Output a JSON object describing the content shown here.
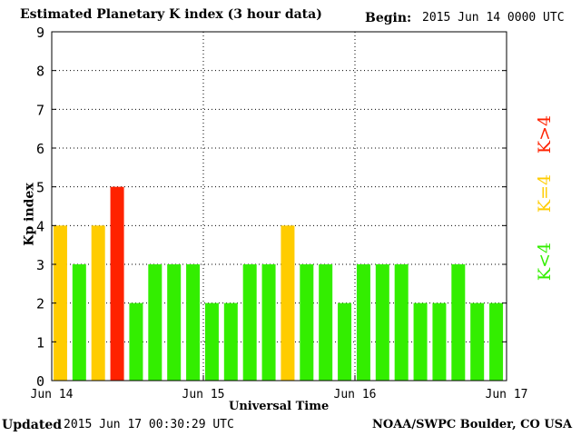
{
  "header": {
    "title": "Estimated Planetary K index (3 hour data)",
    "begin_label": "Begin:",
    "begin_value": "2015 Jun 14 0000 UTC"
  },
  "footer": {
    "updated_label": "Updated",
    "updated_value": "2015 Jun 17 00:30:29 UTC",
    "credit": "NOAA/SWPC Boulder, CO USA"
  },
  "legend": {
    "below": "K<4",
    "equal": "K=4",
    "above": "K>4"
  },
  "colors": {
    "below": "#33ee00",
    "equal": "#ffcc00",
    "above": "#ff2200"
  },
  "chart_data": {
    "type": "bar",
    "title": "Estimated Planetary K index (3 hour data)",
    "xlabel": "Universal Time",
    "ylabel": "Kp index",
    "ylim": [
      0,
      9
    ],
    "yticks": [
      "0",
      "1",
      "2",
      "3",
      "4",
      "5",
      "6",
      "7",
      "8",
      "9"
    ],
    "xticks": [
      "Jun 14",
      "Jun 15",
      "Jun 16",
      "Jun 17"
    ],
    "grid": true,
    "values": [
      4,
      3,
      4,
      5,
      2,
      3,
      3,
      3,
      2,
      2,
      3,
      3,
      4,
      3,
      3,
      2,
      3,
      3,
      3,
      2,
      2,
      3,
      2,
      2
    ]
  }
}
